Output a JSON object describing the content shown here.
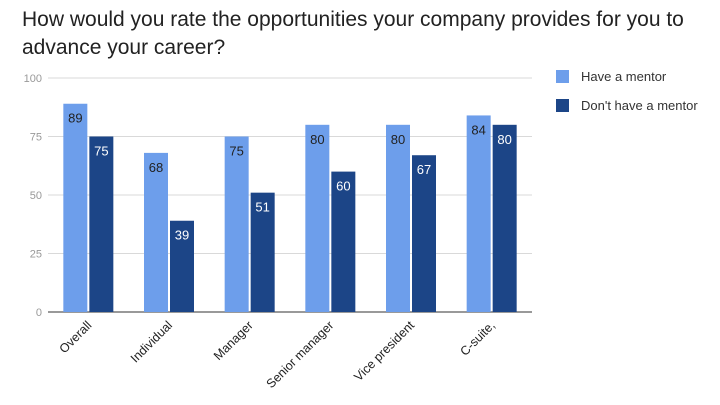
{
  "chart_data": {
    "type": "bar",
    "title": "How would you rate the opportunities your company provides for you to advance your career?",
    "categories": [
      "Overall",
      "Individual",
      "Manager",
      "Senior manager",
      "Vice president",
      "C-suite,"
    ],
    "series": [
      {
        "name": "Have a mentor",
        "values": [
          89,
          68,
          75,
          80,
          80,
          84
        ],
        "color": "#6d9eeb"
      },
      {
        "name": "Don't have a mentor",
        "values": [
          75,
          39,
          51,
          60,
          67,
          80
        ],
        "color": "#1c4587"
      }
    ],
    "ylim": [
      0,
      100
    ],
    "yticks": [
      0,
      25,
      50,
      75,
      100
    ],
    "grid": true,
    "legend": "right",
    "xlabel": "",
    "ylabel": ""
  }
}
